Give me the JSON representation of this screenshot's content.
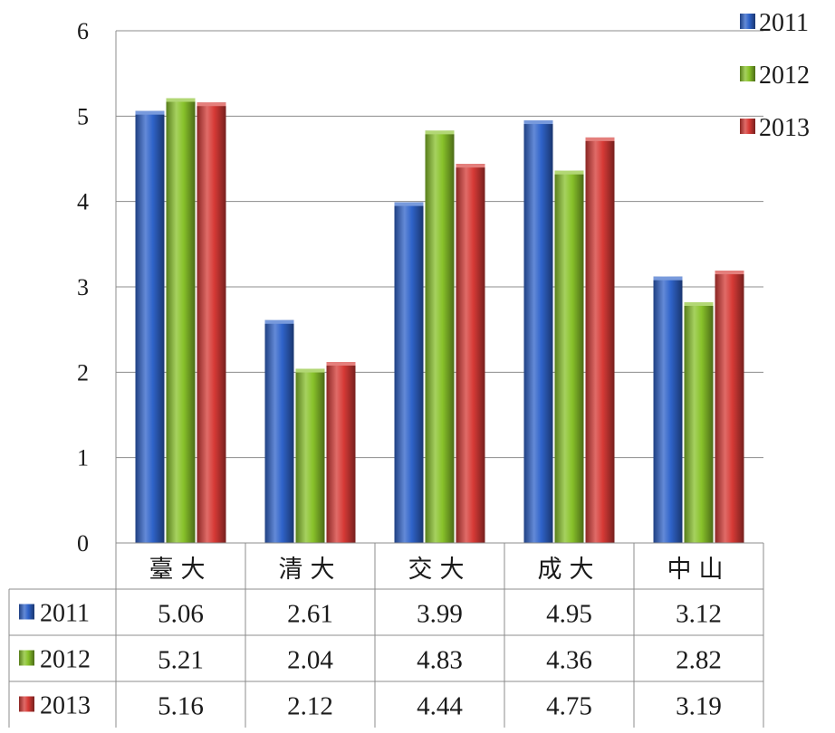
{
  "chart_data": {
    "type": "bar",
    "categories": [
      "臺大",
      "清大",
      "交大",
      "成大",
      "中山"
    ],
    "series": [
      {
        "name": "2011",
        "values": [
          5.06,
          2.61,
          3.99,
          4.95,
          3.12
        ],
        "color": "#2f63c9"
      },
      {
        "name": "2012",
        "values": [
          5.21,
          2.04,
          4.83,
          4.36,
          2.82
        ],
        "color": "#88c22a"
      },
      {
        "name": "2013",
        "values": [
          5.16,
          2.12,
          4.44,
          4.75,
          3.19
        ],
        "color": "#d63a36"
      }
    ],
    "yticks": [
      "0",
      "1",
      "2",
      "3",
      "4",
      "5",
      "6"
    ],
    "ylim": [
      0,
      6
    ],
    "grid": true,
    "legend": "top-right",
    "data_table": {
      "rows": [
        {
          "label": "2011",
          "cells": [
            "5.06",
            "2.61",
            "3.99",
            "4.95",
            "3.12"
          ]
        },
        {
          "label": "2012",
          "cells": [
            "5.21",
            "2.04",
            "4.83",
            "4.36",
            "2.82"
          ]
        },
        {
          "label": "2013",
          "cells": [
            "5.16",
            "2.12",
            "4.44",
            "4.75",
            "3.19"
          ]
        }
      ]
    }
  }
}
